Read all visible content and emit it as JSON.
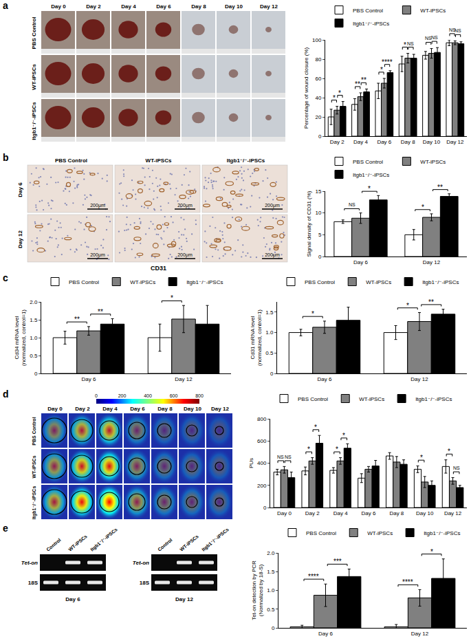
{
  "panel_labels": [
    "a",
    "b",
    "c",
    "d",
    "e"
  ],
  "image_panels": {
    "a": {
      "columns": [
        "Day 0",
        "Day 2",
        "Day 4",
        "Day 6",
        "Day 8",
        "Day 10",
        "Day 12"
      ],
      "rows": [
        "PBS Control",
        "WT-iPSCs",
        "Itgb1⁻/⁻-iPSCs"
      ]
    },
    "b": {
      "columns": [
        "PBS Control",
        "WT-iPSCs",
        "Itgb1⁻/⁻-iPSCs"
      ],
      "rows": [
        "Day 6",
        "Day 12"
      ],
      "scale_bar": "200μm",
      "caption": "CD31"
    },
    "d": {
      "columns": [
        "Day 0",
        "Day 2",
        "Day 4",
        "Day 6",
        "Day 8",
        "Day 10",
        "Day 12"
      ],
      "rows": [
        "PBS Control",
        "WT-iPSCs",
        "Itgb1⁻/⁻-iPSCs"
      ],
      "colorbar": {
        "range": [
          0,
          800
        ],
        "ticks": [
          0,
          200,
          400,
          600,
          800
        ]
      }
    },
    "e": {
      "gels": [
        {
          "title": "Day 6",
          "lanes": [
            "Control",
            "WT-iPSCs",
            "Itgb1⁻/⁻-iPSCs"
          ],
          "bands": [
            {
              "name": "Tet-on",
              "present": [
                false,
                true,
                true
              ]
            },
            {
              "name": "18S",
              "present": [
                true,
                true,
                true
              ]
            }
          ]
        },
        {
          "title": "Day 12",
          "lanes": [
            "Control",
            "WT-iPSCs",
            "Itgb1⁻/⁻-iPSCs"
          ],
          "bands": [
            {
              "name": "Tet-on",
              "present": [
                false,
                true,
                true
              ]
            },
            {
              "name": "18S",
              "present": [
                true,
                true,
                true
              ]
            }
          ]
        }
      ]
    }
  },
  "chart_data": [
    {
      "type": "bar",
      "y_label": "Percentage of wound closure (%)",
      "categories": [
        "Day 2",
        "Day 4",
        "Day 6",
        "Day 8",
        "Day 10",
        "Day 12"
      ],
      "series": [
        {
          "name": "PBS Control",
          "color": "#ffffff",
          "values": [
            20,
            33,
            47,
            75,
            84,
            97
          ],
          "errors": [
            8,
            6,
            8,
            8,
            4,
            3
          ]
        },
        {
          "name": "WT-iPSCs",
          "color": "#808080",
          "values": [
            27,
            41,
            55,
            81,
            86,
            97
          ],
          "errors": [
            4,
            4,
            5,
            5,
            5,
            2
          ]
        },
        {
          "name": "Itgb1⁻/⁻-iPSCs",
          "color": "#000000",
          "values": [
            31,
            46,
            66,
            81,
            87,
            96
          ],
          "errors": [
            5,
            3,
            2,
            4,
            5,
            2
          ]
        }
      ],
      "ylim": [
        0,
        100
      ],
      "yticks": [
        0,
        20,
        40,
        60,
        80,
        100
      ],
      "grid": false,
      "legend": "top",
      "significance": [
        {
          "category": "Day 2",
          "pair": [
            "PBS Control",
            "WT-iPSCs"
          ],
          "text": "*"
        },
        {
          "category": "Day 2",
          "pair": [
            "WT-iPSCs",
            "Itgb1⁻/⁻-iPSCs"
          ],
          "text": "*"
        },
        {
          "category": "Day 4",
          "pair": [
            "PBS Control",
            "WT-iPSCs"
          ],
          "text": "**"
        },
        {
          "category": "Day 4",
          "pair": [
            "WT-iPSCs",
            "Itgb1⁻/⁻-iPSCs"
          ],
          "text": "**"
        },
        {
          "category": "Day 6",
          "pair": [
            "PBS Control",
            "WT-iPSCs"
          ],
          "text": "*"
        },
        {
          "category": "Day 6",
          "pair": [
            "WT-iPSCs",
            "Itgb1⁻/⁻-iPSCs"
          ],
          "text": "****"
        },
        {
          "category": "Day 8",
          "pair": [
            "PBS Control",
            "WT-iPSCs"
          ],
          "text": "*"
        },
        {
          "category": "Day 8",
          "pair": [
            "WT-iPSCs",
            "Itgb1⁻/⁻-iPSCs"
          ],
          "text": "NS"
        },
        {
          "category": "Day 10",
          "pair": [
            "PBS Control",
            "WT-iPSCs"
          ],
          "text": "NS"
        },
        {
          "category": "Day 10",
          "pair": [
            "WT-iPSCs",
            "Itgb1⁻/⁻-iPSCs"
          ],
          "text": "NS"
        },
        {
          "category": "Day 12",
          "pair": [
            "PBS Control",
            "WT-iPSCs"
          ],
          "text": "NS"
        },
        {
          "category": "Day 12",
          "pair": [
            "WT-iPSCs",
            "Itgb1⁻/⁻-iPSCs"
          ],
          "text": "NS"
        }
      ]
    },
    {
      "type": "bar",
      "y_label": "Signal density of CD31 (%)",
      "categories": [
        "Day 6",
        "Day 12"
      ],
      "series": [
        {
          "name": "PBS Control",
          "color": "#ffffff",
          "values": [
            8.0,
            5.0
          ],
          "errors": [
            0.4,
            1.2
          ]
        },
        {
          "name": "WT-iPSCs",
          "color": "#808080",
          "values": [
            8.8,
            9.0
          ],
          "errors": [
            1.2,
            0.8
          ]
        },
        {
          "name": "Itgb1⁻/⁻-iPSCs",
          "color": "#000000",
          "values": [
            13.0,
            13.8
          ],
          "errors": [
            1.0,
            0.6
          ]
        }
      ],
      "ylim": [
        0,
        15
      ],
      "yticks": [
        0,
        5,
        10,
        15
      ],
      "grid": false,
      "legend": "top",
      "significance": [
        {
          "category": "Day 6",
          "pair": [
            "PBS Control",
            "WT-iPSCs"
          ],
          "text": "NS"
        },
        {
          "category": "Day 6",
          "pair": [
            "WT-iPSCs",
            "Itgb1⁻/⁻-iPSCs"
          ],
          "text": "*"
        },
        {
          "category": "Day 12",
          "pair": [
            "PBS Control",
            "WT-iPSCs"
          ],
          "text": "*"
        },
        {
          "category": "Day 12",
          "pair": [
            "WT-iPSCs",
            "Itgb1⁻/⁻-iPSCs"
          ],
          "text": "**"
        }
      ]
    },
    {
      "type": "bar",
      "y_label": "Cd34 mRNA level\n(normalized, control=1)",
      "categories": [
        "Day 6",
        "Day 12"
      ],
      "series": [
        {
          "name": "PBS Control",
          "color": "#ffffff",
          "values": [
            1.0,
            1.0
          ],
          "errors": [
            0.18,
            0.38
          ]
        },
        {
          "name": "WT-iPSCs",
          "color": "#808080",
          "values": [
            1.19,
            1.52
          ],
          "errors": [
            0.12,
            0.38
          ]
        },
        {
          "name": "Itgb1⁻/⁻-iPSCs",
          "color": "#000000",
          "values": [
            1.38,
            1.38
          ],
          "errors": [
            0.15,
            0.52
          ]
        }
      ],
      "ylim": [
        0,
        2
      ],
      "yticks": [
        0,
        0.5,
        {
          "value": 1,
          "label": "1.0"
        },
        1.5,
        {
          "value": 2,
          "label": "2.0"
        }
      ],
      "grid": false,
      "legend": "top",
      "significance": [
        {
          "category": "Day 6",
          "pair": [
            "PBS Control",
            "WT-iPSCs"
          ],
          "text": "**"
        },
        {
          "category": "Day 6",
          "pair": [
            "WT-iPSCs",
            "Itgb1⁻/⁻-iPSCs"
          ],
          "text": "**"
        },
        {
          "category": "Day 12",
          "pair": [
            "PBS Control",
            "WT-iPSCs"
          ],
          "text": "*"
        }
      ]
    },
    {
      "type": "bar",
      "y_label": "Cd31 mRNA level\n(normalized, control=1)",
      "categories": [
        "Day 6",
        "Day 12"
      ],
      "series": [
        {
          "name": "PBS Control",
          "color": "#ffffff",
          "values": [
            1.0,
            1.0
          ],
          "errors": [
            0.08,
            0.17
          ]
        },
        {
          "name": "WT-iPSCs",
          "color": "#808080",
          "values": [
            1.13,
            1.27
          ],
          "errors": [
            0.15,
            0.22
          ]
        },
        {
          "name": "Itgb1⁻/⁻-iPSCs",
          "color": "#000000",
          "values": [
            1.3,
            1.45
          ],
          "errors": [
            0.32,
            0.12
          ]
        }
      ],
      "ylim": [
        0,
        1.75
      ],
      "yticks": [
        0,
        0.5,
        {
          "value": 1,
          "label": "1.0"
        },
        1.5
      ],
      "grid": false,
      "legend": "top",
      "significance": [
        {
          "category": "Day 6",
          "pair": [
            "PBS Control",
            "WT-iPSCs"
          ],
          "text": "*"
        },
        {
          "category": "Day 12",
          "pair": [
            "PBS Control",
            "WT-iPSCs"
          ],
          "text": "*"
        },
        {
          "category": "Day 12",
          "pair": [
            "WT-iPSCs",
            "Itgb1⁻/⁻-iPSCs"
          ],
          "text": "**"
        }
      ]
    },
    {
      "type": "bar",
      "y_label": "PUs",
      "categories": [
        "Day 0",
        "Day 2",
        "Day 4",
        "Day 6",
        "Day 8",
        "Day 10",
        "Day 12"
      ],
      "series": [
        {
          "name": "PBS Control",
          "color": "#ffffff",
          "values": [
            320,
            330,
            335,
            265,
            465,
            345,
            370
          ],
          "errors": [
            25,
            35,
            25,
            40,
            30,
            30,
            60
          ]
        },
        {
          "name": "WT-iPSCs",
          "color": "#808080",
          "values": [
            340,
            420,
            420,
            345,
            410,
            230,
            240
          ],
          "errors": [
            30,
            30,
            30,
            25,
            50,
            50,
            30
          ]
        },
        {
          "name": "Itgb1⁻/⁻-iPSCs",
          "color": "#000000",
          "values": [
            270,
            580,
            535,
            375,
            390,
            200,
            180
          ],
          "errors": [
            50,
            70,
            40,
            50,
            40,
            40,
            20
          ]
        }
      ],
      "ylim": [
        0,
        800
      ],
      "yticks": [
        0,
        200,
        400,
        600,
        800
      ],
      "grid": false,
      "legend": "top",
      "significance": [
        {
          "category": "Day 0",
          "pair": [
            "PBS Control",
            "WT-iPSCs"
          ],
          "text": "NS"
        },
        {
          "category": "Day 0",
          "pair": [
            "WT-iPSCs",
            "Itgb1⁻/⁻-iPSCs"
          ],
          "text": "NS"
        },
        {
          "category": "Day 2",
          "pair": [
            "PBS Control",
            "WT-iPSCs"
          ],
          "text": "*"
        },
        {
          "category": "Day 2",
          "pair": [
            "WT-iPSCs",
            "Itgb1⁻/⁻-iPSCs"
          ],
          "text": "*"
        },
        {
          "category": "Day 4",
          "pair": [
            "PBS Control",
            "WT-iPSCs"
          ],
          "text": "*"
        },
        {
          "category": "Day 4",
          "pair": [
            "WT-iPSCs",
            "Itgb1⁻/⁻-iPSCs"
          ],
          "text": "*"
        },
        {
          "category": "Day 10",
          "pair": [
            "PBS Control",
            "WT-iPSCs"
          ],
          "text": "*"
        },
        {
          "category": "Day 12",
          "pair": [
            "PBS Control",
            "WT-iPSCs"
          ],
          "text": "*"
        },
        {
          "category": "Day 12",
          "pair": [
            "WT-iPSCs",
            "Itgb1⁻/⁻-iPSCs"
          ],
          "text": "NS"
        }
      ]
    },
    {
      "type": "bar",
      "y_label": "Tet-on detection by PCR\n(Normalized by 18-S)",
      "categories": [
        "Day 6",
        "Day 12"
      ],
      "series": [
        {
          "name": "PBS Control",
          "color": "#ffffff",
          "values": [
            0.03,
            0.03
          ],
          "errors": [
            0.04,
            0.06
          ]
        },
        {
          "name": "WT-iPSCs",
          "color": "#808080",
          "values": [
            0.87,
            0.8
          ],
          "errors": [
            0.3,
            0.22
          ]
        },
        {
          "name": "Itgb1⁻/⁻-iPSCs",
          "color": "#000000",
          "values": [
            1.37,
            1.32
          ],
          "errors": [
            0.2,
            0.52
          ]
        }
      ],
      "ylim": [
        0,
        2
      ],
      "yticks": [
        0,
        0.5,
        {
          "value": 1,
          "label": "1.0"
        },
        1.5,
        {
          "value": 2,
          "label": "2.0"
        }
      ],
      "grid": false,
      "legend": "top",
      "significance": [
        {
          "category": "Day 6",
          "pair": [
            "PBS Control",
            "WT-iPSCs"
          ],
          "text": "****"
        },
        {
          "category": "Day 6",
          "pair": [
            "WT-iPSCs",
            "Itgb1⁻/⁻-iPSCs"
          ],
          "text": "***"
        },
        {
          "category": "Day 12",
          "pair": [
            "PBS Control",
            "WT-iPSCs"
          ],
          "text": "****"
        },
        {
          "category": "Day 12",
          "pair": [
            "WT-iPSCs",
            "Itgb1⁻/⁻-iPSCs"
          ],
          "text": "*"
        }
      ]
    }
  ]
}
